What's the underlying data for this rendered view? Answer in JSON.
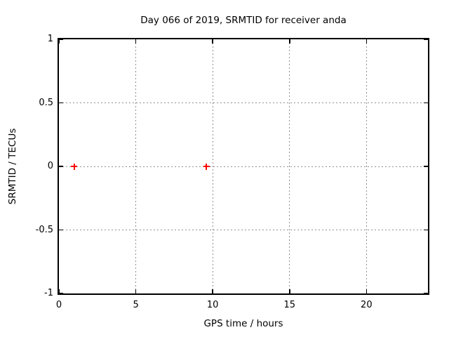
{
  "figure": {
    "background": "#ffffff",
    "axis_color": "#000000",
    "grid_color": "#909090"
  },
  "chart_data": {
    "type": "scatter",
    "title": "Day 066 of 2019, SRMTID for receiver anda",
    "xlabel": "GPS time / hours",
    "ylabel": "SRMTID / TECUs",
    "xlim": [
      0,
      24
    ],
    "ylim": [
      -1,
      1
    ],
    "xticks": [
      0,
      5,
      10,
      15,
      20
    ],
    "yticks": [
      -1,
      -0.5,
      0,
      0.5,
      1
    ],
    "grid": true,
    "legend": false,
    "series": [
      {
        "name": "SRMTID",
        "marker": "plus",
        "color": "#ff0000",
        "points": [
          {
            "x": 1.0,
            "y": 0.0
          },
          {
            "x": 9.6,
            "y": 0.0
          }
        ]
      }
    ]
  }
}
